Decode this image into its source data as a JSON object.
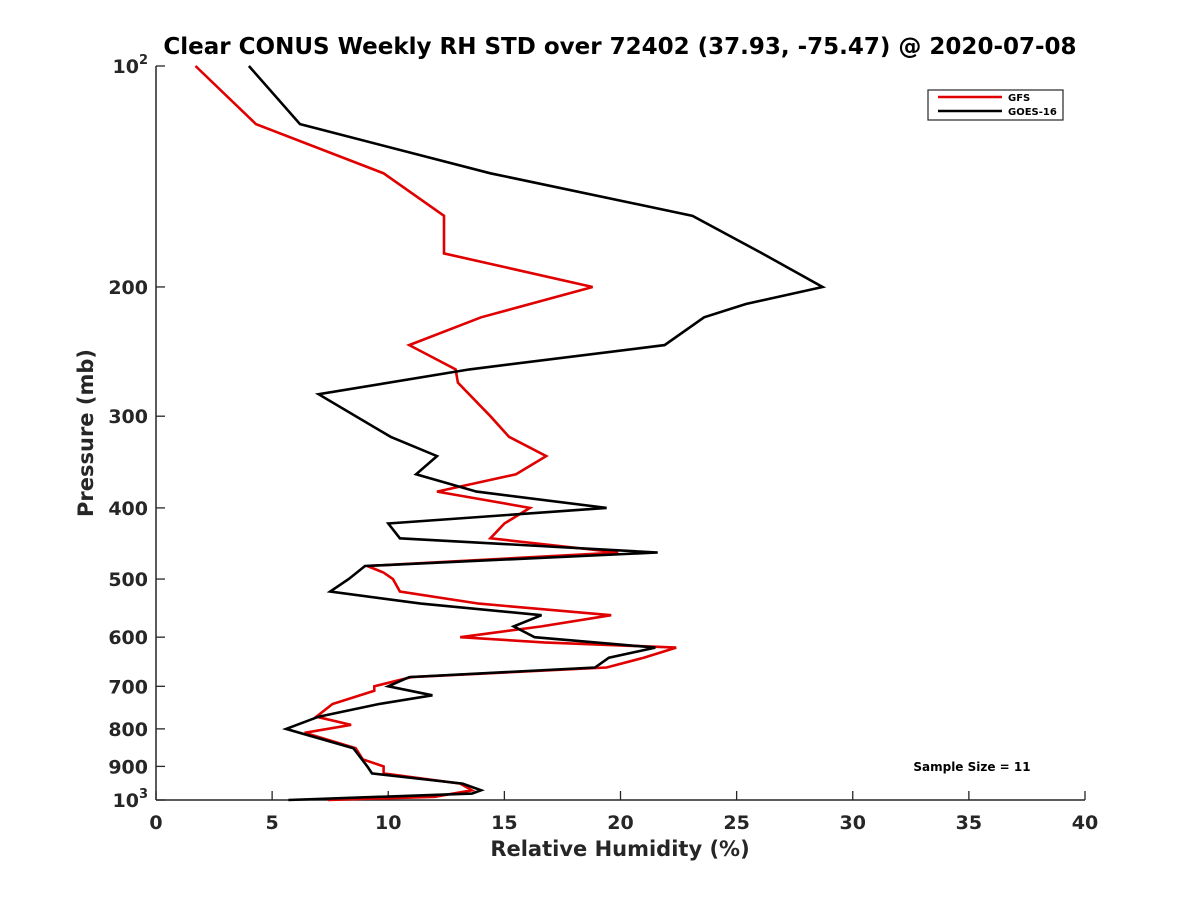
{
  "chart_data": {
    "type": "line",
    "title": "Clear CONUS Weekly RH STD over 72402 (37.93, -75.47) @ 2020-07-08",
    "xlabel": "Relative Humidity (%)",
    "ylabel": "Pressure (mb)",
    "xlim": [
      0,
      40
    ],
    "ylim": [
      100,
      1000
    ],
    "yscale": "log",
    "yreversed": true,
    "xticks": [
      0,
      5,
      10,
      15,
      20,
      25,
      30,
      35,
      40
    ],
    "xtick_labels": [
      "0",
      "5",
      "10",
      "15",
      "20",
      "25",
      "30",
      "35",
      "40"
    ],
    "yticks": [
      100,
      200,
      300,
      400,
      500,
      600,
      700,
      800,
      900,
      1000
    ],
    "ytick_labels": [
      {
        "base": "10",
        "sup": "2"
      },
      {
        "base": "200",
        "sup": ""
      },
      {
        "base": "300",
        "sup": ""
      },
      {
        "base": "400",
        "sup": ""
      },
      {
        "base": "500",
        "sup": ""
      },
      {
        "base": "600",
        "sup": ""
      },
      {
        "base": "700",
        "sup": ""
      },
      {
        "base": "800",
        "sup": ""
      },
      {
        "base": "900",
        "sup": ""
      },
      {
        "base": "10",
        "sup": "3"
      }
    ],
    "grid": false,
    "legend": {
      "position": "top-right",
      "entries": [
        "GFS",
        "GOES-16"
      ]
    },
    "annotation": "Sample Size = 11",
    "series": [
      {
        "name": "GFS",
        "color": "#e00000",
        "points": [
          [
            1.7,
            100
          ],
          [
            4.3,
            120
          ],
          [
            9.8,
            140
          ],
          [
            12.4,
            160
          ],
          [
            12.4,
            180
          ],
          [
            18.8,
            200
          ],
          [
            14.0,
            220
          ],
          [
            10.9,
            240
          ],
          [
            12.9,
            259
          ],
          [
            13.0,
            270
          ],
          [
            14.4,
            300
          ],
          [
            15.2,
            320
          ],
          [
            16.8,
            340
          ],
          [
            15.5,
            360
          ],
          [
            12.1,
            380
          ],
          [
            16.1,
            400
          ],
          [
            15.0,
            420
          ],
          [
            14.4,
            440
          ],
          [
            19.9,
            460
          ],
          [
            9.1,
            480
          ],
          [
            9.8,
            490
          ],
          [
            10.2,
            500
          ],
          [
            10.5,
            520
          ],
          [
            13.9,
            540
          ],
          [
            19.6,
            560
          ],
          [
            16.6,
            580
          ],
          [
            13.1,
            600
          ],
          [
            16.7,
            610
          ],
          [
            22.4,
            620
          ],
          [
            21.0,
            640
          ],
          [
            19.4,
            660
          ],
          [
            11.0,
            680
          ],
          [
            9.4,
            700
          ],
          [
            9.4,
            710
          ],
          [
            7.6,
            740
          ],
          [
            6.9,
            770
          ],
          [
            8.4,
            790
          ],
          [
            6.4,
            810
          ],
          [
            8.6,
            850
          ],
          [
            8.9,
            880
          ],
          [
            9.8,
            900
          ],
          [
            9.8,
            920
          ],
          [
            13.1,
            950
          ],
          [
            13.6,
            970
          ],
          [
            12.0,
            990
          ],
          [
            7.4,
            1000
          ]
        ]
      },
      {
        "name": "GOES-16",
        "color": "#000000",
        "points": [
          [
            4.0,
            100
          ],
          [
            6.2,
            120
          ],
          [
            14.4,
            140
          ],
          [
            23.1,
            160
          ],
          [
            26.1,
            180
          ],
          [
            28.7,
            200
          ],
          [
            25.4,
            211
          ],
          [
            23.6,
            220
          ],
          [
            21.9,
            240
          ],
          [
            13.5,
            259
          ],
          [
            7.0,
            280
          ],
          [
            10.1,
            320
          ],
          [
            12.1,
            340
          ],
          [
            11.2,
            360
          ],
          [
            13.8,
            380
          ],
          [
            19.4,
            400
          ],
          [
            10.0,
            420
          ],
          [
            10.5,
            440
          ],
          [
            21.6,
            460
          ],
          [
            9.0,
            480
          ],
          [
            8.3,
            500
          ],
          [
            7.5,
            520
          ],
          [
            11.4,
            540
          ],
          [
            16.6,
            560
          ],
          [
            15.4,
            580
          ],
          [
            16.3,
            600
          ],
          [
            21.5,
            620
          ],
          [
            19.5,
            640
          ],
          [
            18.9,
            660
          ],
          [
            10.9,
            680
          ],
          [
            10.0,
            700
          ],
          [
            11.9,
            720
          ],
          [
            9.6,
            740
          ],
          [
            7.0,
            770
          ],
          [
            5.6,
            800
          ],
          [
            8.5,
            850
          ],
          [
            9.1,
            900
          ],
          [
            9.3,
            920
          ],
          [
            13.2,
            950
          ],
          [
            14.0,
            970
          ],
          [
            13.6,
            980
          ],
          [
            5.7,
            1000
          ]
        ]
      }
    ]
  }
}
